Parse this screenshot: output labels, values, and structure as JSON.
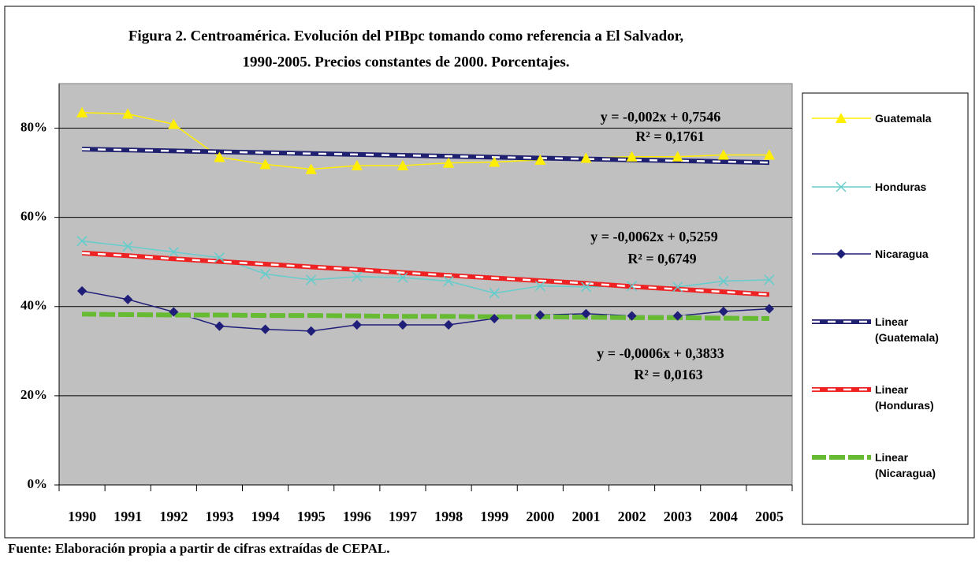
{
  "chart_data": {
    "type": "line",
    "title": [
      "Figura 2. Centroamérica. Evolución del PIBpc tomando como referencia a El Salvador,",
      "1990-2005. Precios constantes de 2000. Porcentajes."
    ],
    "categories": [
      "1990",
      "1991",
      "1992",
      "1993",
      "1994",
      "1995",
      "1996",
      "1997",
      "1998",
      "1999",
      "2000",
      "2001",
      "2002",
      "2003",
      "2004",
      "2005"
    ],
    "series": [
      {
        "name": "Guatemala",
        "color": "#ffee00",
        "marker": "triangle",
        "values": [
          83.5,
          83.2,
          80.9,
          73.5,
          71.9,
          70.8,
          71.6,
          71.6,
          72.2,
          72.4,
          72.9,
          73.3,
          73.6,
          73.6,
          74.0,
          74.0
        ]
      },
      {
        "name": "Honduras",
        "color": "#66cccc",
        "marker": "x",
        "values": [
          54.7,
          53.5,
          52.2,
          51.0,
          47.3,
          46.0,
          46.7,
          46.5,
          45.7,
          43.0,
          44.6,
          44.4,
          44.6,
          44.4,
          45.7,
          46.0
        ]
      },
      {
        "name": "Nicaragua",
        "color": "#1f1f7a",
        "marker": "diamond",
        "values": [
          43.5,
          41.6,
          38.8,
          35.6,
          34.9,
          34.5,
          35.9,
          35.9,
          35.9,
          37.3,
          38.1,
          38.4,
          37.9,
          37.9,
          38.9,
          39.5
        ]
      },
      {
        "name": "Linear (Guatemala)",
        "color": "#1f2070",
        "line_style": "dashed",
        "values": [
          75.3,
          75.1,
          74.9,
          74.7,
          74.5,
          74.3,
          74.1,
          73.9,
          73.7,
          73.5,
          73.3,
          73.1,
          72.9,
          72.7,
          72.5,
          72.3
        ]
      },
      {
        "name": "Linear (Honduras)",
        "color": "#ee2222",
        "line_style": "dashed",
        "values": [
          52.0,
          51.4,
          50.7,
          50.1,
          49.5,
          48.9,
          48.3,
          47.6,
          47.0,
          46.4,
          45.8,
          45.2,
          44.5,
          43.9,
          43.3,
          42.7
        ]
      },
      {
        "name": "Linear (Nicaragua)",
        "color": "#66bb33",
        "line_style": "dashed",
        "values": [
          38.3,
          38.2,
          38.1,
          38.1,
          38.0,
          38.0,
          37.9,
          37.8,
          37.8,
          37.7,
          37.7,
          37.6,
          37.5,
          37.5,
          37.4,
          37.3
        ]
      }
    ],
    "annotations": [
      "y = -0,002x + 0,7546",
      "R² = 0,1761",
      "y = -0,0062x + 0,5259",
      "R² = 0,6749",
      "y = -0,0006x + 0,3833",
      "R² = 0,0163"
    ],
    "ylim": [
      0,
      90
    ],
    "yticks": [
      {
        "value": 0,
        "label": "0%"
      },
      {
        "value": 20,
        "label": "20%"
      },
      {
        "value": 40,
        "label": "40%"
      },
      {
        "value": 60,
        "label": "60%"
      },
      {
        "value": 80,
        "label": "80%"
      }
    ],
    "grid": true,
    "legend": "right",
    "source": "Fuente: Elaboración propia a partir de cifras extraídas de CEPAL."
  }
}
